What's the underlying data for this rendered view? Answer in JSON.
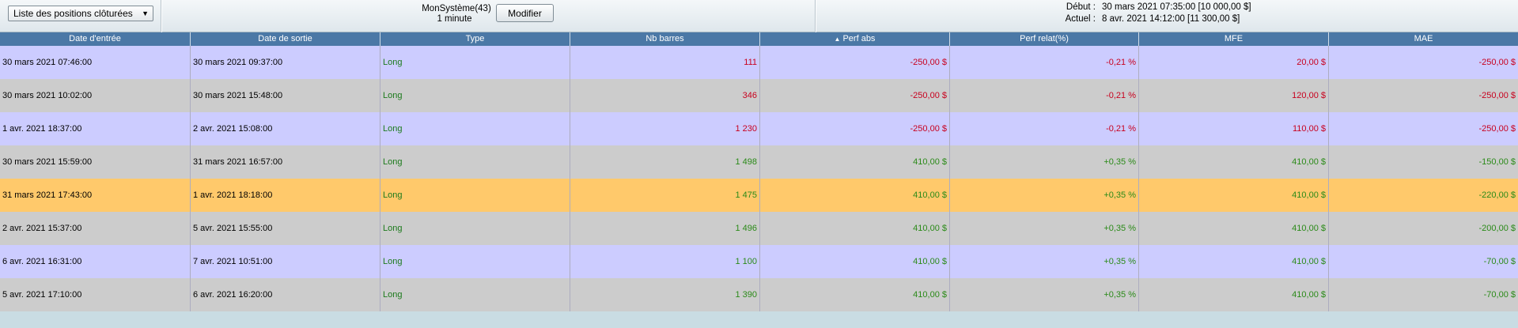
{
  "toolbar": {
    "view_select": "Liste des positions clôturées",
    "system_name": "MonSystème(43)",
    "period": "1 minute",
    "modify_label": "Modifier",
    "start_label": "Début :",
    "start_value": "30 mars 2021 07:35:00  [10 000,00 $]",
    "current_label": "Actuel :",
    "current_value": "8 avr. 2021 14:12:00  [11 300,00 $]"
  },
  "table": {
    "columns": [
      "Date d'entrée",
      "Date de sortie",
      "Type",
      "Nb barres",
      "Perf abs",
      "Perf relat(%)",
      "MFE",
      "MAE"
    ],
    "sorted_column": "Perf abs",
    "rows": [
      {
        "entry": "30 mars 2021 07:46:00",
        "exit": "30 mars 2021 09:37:00",
        "type": "Long",
        "bars": "111",
        "perf_abs": "-250,00 $",
        "perf_rel": "-0,21 %",
        "mfe": "20,00 $",
        "mae": "-250,00 $",
        "sign": "neg",
        "mfe_sign": "neg",
        "mae_sign": "neg"
      },
      {
        "entry": "30 mars 2021 10:02:00",
        "exit": "30 mars 2021 15:48:00",
        "type": "Long",
        "bars": "346",
        "perf_abs": "-250,00 $",
        "perf_rel": "-0,21 %",
        "mfe": "120,00 $",
        "mae": "-250,00 $",
        "sign": "neg",
        "mfe_sign": "neg",
        "mae_sign": "neg"
      },
      {
        "entry": "1 avr. 2021 18:37:00",
        "exit": "2 avr. 2021 15:08:00",
        "type": "Long",
        "bars": "1 230",
        "perf_abs": "-250,00 $",
        "perf_rel": "-0,21 %",
        "mfe": "110,00 $",
        "mae": "-250,00 $",
        "sign": "neg",
        "mfe_sign": "neg",
        "mae_sign": "neg"
      },
      {
        "entry": "30 mars 2021 15:59:00",
        "exit": "31 mars 2021 16:57:00",
        "type": "Long",
        "bars": "1 498",
        "perf_abs": "410,00 $",
        "perf_rel": "+0,35 %",
        "mfe": "410,00 $",
        "mae": "-150,00 $",
        "sign": "pos",
        "mfe_sign": "pos",
        "mae_sign": "pos"
      },
      {
        "entry": "31 mars 2021 17:43:00",
        "exit": "1 avr. 2021 18:18:00",
        "type": "Long",
        "bars": "1 475",
        "perf_abs": "410,00 $",
        "perf_rel": "+0,35 %",
        "mfe": "410,00 $",
        "mae": "-220,00 $",
        "sign": "pos",
        "mfe_sign": "pos",
        "mae_sign": "pos",
        "selected": true
      },
      {
        "entry": "2 avr. 2021 15:37:00",
        "exit": "5 avr. 2021 15:55:00",
        "type": "Long",
        "bars": "1 496",
        "perf_abs": "410,00 $",
        "perf_rel": "+0,35 %",
        "mfe": "410,00 $",
        "mae": "-200,00 $",
        "sign": "pos",
        "mfe_sign": "pos",
        "mae_sign": "pos"
      },
      {
        "entry": "6 avr. 2021 16:31:00",
        "exit": "7 avr. 2021 10:51:00",
        "type": "Long",
        "bars": "1 100",
        "perf_abs": "410,00 $",
        "perf_rel": "+0,35 %",
        "mfe": "410,00 $",
        "mae": "-70,00 $",
        "sign": "pos",
        "mfe_sign": "pos",
        "mae_sign": "pos"
      },
      {
        "entry": "5 avr. 2021 17:10:00",
        "exit": "6 avr. 2021 16:20:00",
        "type": "Long",
        "bars": "1 390",
        "perf_abs": "410,00 $",
        "perf_rel": "+0,35 %",
        "mfe": "410,00 $",
        "mae": "-70,00 $",
        "sign": "pos",
        "mfe_sign": "pos",
        "mae_sign": "pos"
      }
    ]
  },
  "colors": {
    "header_bg": "#4b78a6",
    "row_a": "#ccccff",
    "row_b": "#cccccc",
    "row_selected": "#ffc96b",
    "negative": "#c8001e",
    "positive": "#2a8a18"
  }
}
